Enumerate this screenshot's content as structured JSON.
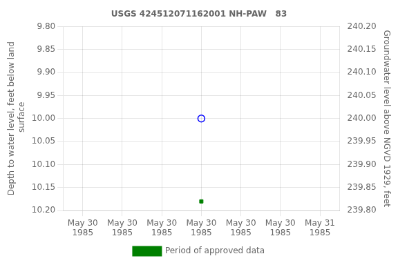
{
  "chart_data": {
    "type": "scatter",
    "title": "USGS 424512071162001 NH-PAW   83",
    "categories": [
      "May 30\n1985",
      "May 30\n1985",
      "May 30\n1985",
      "May 30\n1985",
      "May 30\n1985",
      "May 30\n1985",
      "May 31\n1985"
    ],
    "y_label": "Depth to water level, feet below land\n surface",
    "y2_label": "Groundwater level above NGVD 1929, feet",
    "series": [
      {
        "color": "#0000ff",
        "marker": "open_circle",
        "values": [
          null,
          null,
          null,
          10.0,
          null,
          null,
          null
        ]
      },
      {
        "name": "Period of approved data",
        "color": "#008000",
        "marker": "square",
        "values": [
          null,
          null,
          null,
          10.18,
          null,
          null,
          null
        ]
      }
    ],
    "ylim": [
      10.2,
      9.8
    ],
    "yticks": [
      {
        "value": 9.8,
        "label": "9.80"
      },
      {
        "value": 9.85,
        "label": "9.85"
      },
      {
        "value": 9.9,
        "label": "9.90"
      },
      {
        "value": 9.95,
        "label": "9.95"
      },
      {
        "value": 10.0,
        "label": "10.00"
      },
      {
        "value": 10.05,
        "label": "10.05"
      },
      {
        "value": 10.1,
        "label": "10.10"
      },
      {
        "value": 10.15,
        "label": "10.15"
      },
      {
        "value": 10.2,
        "label": "10.20"
      }
    ],
    "y2lim": [
      239.8,
      240.2
    ],
    "y2ticks": [
      {
        "value": 240.2,
        "label": "240.20"
      },
      {
        "value": 240.15,
        "label": "240.15"
      },
      {
        "value": 240.1,
        "label": "240.10"
      },
      {
        "value": 240.05,
        "label": "240.05"
      },
      {
        "value": 240.0,
        "label": "240.00"
      },
      {
        "value": 239.95,
        "label": "239.95"
      },
      {
        "value": 239.9,
        "label": "239.90"
      },
      {
        "value": 239.85,
        "label": "239.85"
      },
      {
        "value": 239.8,
        "label": "239.80"
      }
    ],
    "grid": true,
    "legend": "bottom"
  }
}
